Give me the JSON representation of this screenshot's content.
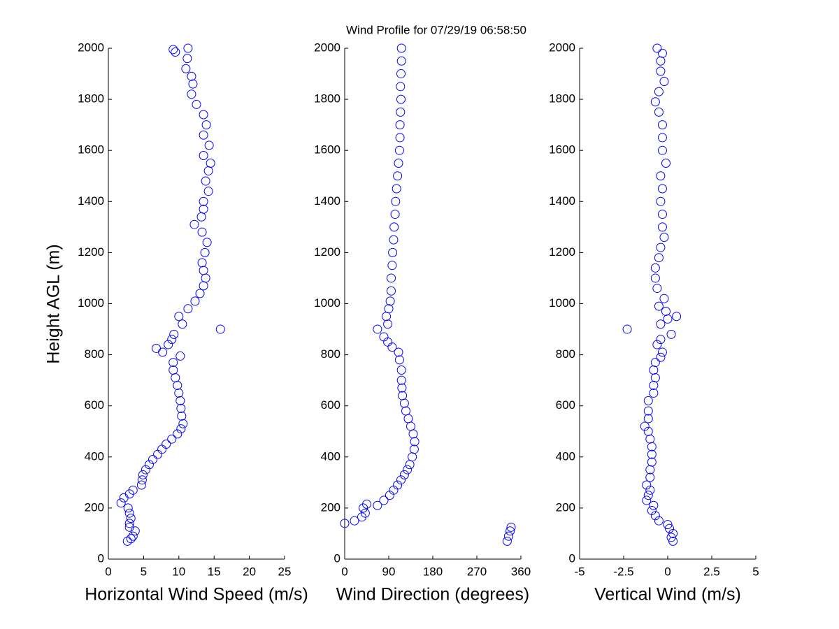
{
  "chart_data": [
    {
      "type": "scatter",
      "title": "Wind Profile for  07/29/19 06:58:50",
      "xlabel": "Horizontal Wind Speed (m/s)",
      "ylabel": "Height AGL (m)",
      "color": "#0000ff",
      "xlim": [
        0,
        25
      ],
      "xticks": [
        0,
        5,
        10,
        15,
        20,
        25
      ],
      "ylim": [
        0,
        2000
      ],
      "yticks": [
        0,
        200,
        400,
        600,
        800,
        1000,
        1200,
        1400,
        1600,
        1800,
        2000
      ],
      "x": [
        2.7,
        3.2,
        3.5,
        3.8,
        3.0,
        3.0,
        3.2,
        3.0,
        2.8,
        1.8,
        2.2,
        3.0,
        3.5,
        4.7,
        4.8,
        4.9,
        5.3,
        5.8,
        6.3,
        7.0,
        7.6,
        8.2,
        9.0,
        9.8,
        10.3,
        10.6,
        10.4,
        10.3,
        10.2,
        10.0,
        9.8,
        9.5,
        9.2,
        9.2,
        10.2,
        7.7,
        6.8,
        8.5,
        9.0,
        9.3,
        15.9,
        10.5,
        10.0,
        11.3,
        12.3,
        13.0,
        13.5,
        13.8,
        13.5,
        13.3,
        13.7,
        14.0,
        13.3,
        12.2,
        13.2,
        13.5,
        13.5,
        14.2,
        13.8,
        14.2,
        14.5,
        13.5,
        14.3,
        13.5,
        13.9,
        13.5,
        12.5,
        11.8,
        12.0,
        11.8,
        11.0,
        11.2,
        9.5,
        9.2,
        11.3
      ],
      "values": [
        70,
        80,
        90,
        110,
        125,
        140,
        160,
        180,
        200,
        220,
        240,
        255,
        270,
        290,
        310,
        330,
        350,
        370,
        390,
        410,
        430,
        450,
        470,
        490,
        510,
        530,
        560,
        590,
        620,
        650,
        680,
        710,
        740,
        770,
        795,
        810,
        825,
        840,
        860,
        880,
        900,
        920,
        950,
        980,
        1010,
        1040,
        1070,
        1100,
        1130,
        1160,
        1200,
        1240,
        1280,
        1310,
        1340,
        1370,
        1400,
        1440,
        1480,
        1520,
        1550,
        1580,
        1620,
        1660,
        1700,
        1740,
        1780,
        1820,
        1860,
        1890,
        1920,
        1960,
        1985,
        1995,
        2000
      ]
    },
    {
      "type": "scatter",
      "xlabel": "Wind Direction (degrees)",
      "color": "#0000ff",
      "xlim": [
        0,
        360
      ],
      "xticks": [
        0,
        90,
        180,
        270,
        360
      ],
      "ylim": [
        0,
        2000
      ],
      "yticks": [
        0,
        200,
        400,
        600,
        800,
        1000,
        1200,
        1400,
        1600,
        1800,
        2000
      ],
      "x": [
        332,
        335,
        338,
        340,
        0,
        20,
        35,
        42,
        38,
        45,
        67,
        80,
        92,
        100,
        108,
        115,
        122,
        128,
        133,
        138,
        142,
        143,
        140,
        135,
        130,
        125,
        122,
        118,
        117,
        116,
        116,
        112,
        110,
        97,
        88,
        80,
        67,
        88,
        85,
        90,
        93,
        95,
        95,
        97,
        98,
        100,
        101,
        103,
        104,
        106,
        108,
        110,
        112,
        113,
        113,
        114,
        115,
        114,
        115,
        116,
        116
      ],
      "values": [
        70,
        90,
        110,
        125,
        140,
        150,
        165,
        180,
        200,
        215,
        210,
        230,
        250,
        270,
        290,
        310,
        330,
        350,
        370,
        400,
        430,
        460,
        490,
        520,
        550,
        580,
        610,
        640,
        670,
        700,
        740,
        780,
        810,
        830,
        850,
        870,
        900,
        920,
        950,
        980,
        1010,
        1050,
        1100,
        1150,
        1200,
        1250,
        1300,
        1350,
        1400,
        1450,
        1500,
        1550,
        1600,
        1650,
        1700,
        1750,
        1800,
        1850,
        1900,
        1950,
        2000
      ]
    },
    {
      "type": "scatter",
      "xlabel": "Vertical Wind (m/s)",
      "color": "#0000ff",
      "xlim": [
        -5,
        5
      ],
      "xticks": [
        -5,
        -2.5,
        0,
        2.5,
        5
      ],
      "ylim": [
        0,
        2000
      ],
      "yticks": [
        0,
        200,
        400,
        600,
        800,
        1000,
        1200,
        1400,
        1600,
        1800,
        2000
      ],
      "x": [
        0.3,
        0.2,
        0.3,
        0.1,
        0,
        -0.5,
        -0.7,
        -0.9,
        -0.8,
        -1.2,
        -1.1,
        -1.0,
        -1.2,
        -1.0,
        -1.0,
        -0.9,
        -0.9,
        -0.9,
        -1.0,
        -1.1,
        -1.3,
        -1.1,
        -1.1,
        -1.1,
        -0.8,
        -0.8,
        -0.7,
        -0.8,
        -0.7,
        -0.4,
        -0.3,
        -0.6,
        -0.4,
        0.2,
        -2.3,
        -0.4,
        0,
        0.5,
        -0.1,
        -0.5,
        -0.2,
        -0.6,
        -0.7,
        -0.7,
        -0.5,
        -0.4,
        -0.2,
        -0.3,
        -0.3,
        -0.4,
        -0.3,
        -0.4,
        -0.1,
        -0.3,
        -0.3,
        -0.3,
        -0.5,
        -0.7,
        -0.5,
        -0.2,
        -0.4,
        -0.4,
        -0.3,
        -0.6
      ],
      "values": [
        70,
        85,
        100,
        120,
        135,
        150,
        170,
        190,
        210,
        230,
        250,
        270,
        290,
        320,
        350,
        380,
        410,
        440,
        470,
        500,
        520,
        550,
        580,
        620,
        650,
        680,
        710,
        740,
        770,
        790,
        810,
        840,
        860,
        880,
        900,
        920,
        940,
        950,
        970,
        990,
        1020,
        1060,
        1100,
        1140,
        1180,
        1220,
        1260,
        1300,
        1350,
        1400,
        1450,
        1500,
        1550,
        1600,
        1650,
        1700,
        1750,
        1790,
        1830,
        1870,
        1910,
        1950,
        1980,
        2000
      ]
    }
  ]
}
